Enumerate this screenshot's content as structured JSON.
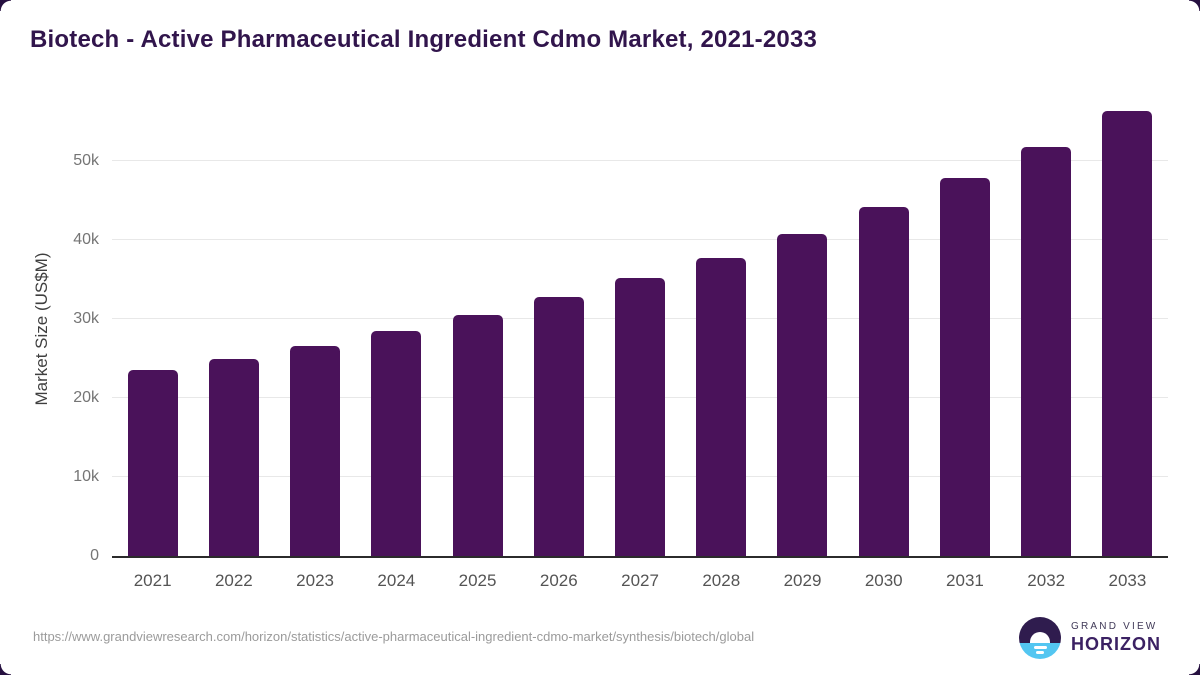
{
  "page": {
    "title": "Biotech - Active Pharmaceutical Ingredient Cdmo Market, 2021-2033",
    "source_url": "https://www.grandviewresearch.com/horizon/statistics/active-pharmaceutical-ingredient-cdmo-market/synthesis/biotech/global"
  },
  "logo": {
    "icon": "horizon-sunrise-icon",
    "brand_top": "GRAND VIEW",
    "brand_bottom": "HORIZON",
    "colors": {
      "circle_top": "#2f1c4e",
      "circle_bottom": "#53c6f1",
      "wordmark": "#3b2163"
    }
  },
  "chart_data": {
    "type": "bar",
    "title": "Biotech - Active Pharmaceutical Ingredient Cdmo Market, 2021-2033",
    "xlabel": "",
    "ylabel": "Market Size (US$M)",
    "categories": [
      "2021",
      "2022",
      "2023",
      "2024",
      "2025",
      "2026",
      "2027",
      "2028",
      "2029",
      "2030",
      "2031",
      "2032",
      "2033"
    ],
    "values": [
      23500,
      24900,
      26600,
      28500,
      30500,
      32800,
      35200,
      37800,
      40800,
      44200,
      47900,
      51800,
      56300
    ],
    "ylim": [
      0,
      57750
    ],
    "yticks": [
      {
        "value": 0,
        "label": "0"
      },
      {
        "value": 10000,
        "label": "10k"
      },
      {
        "value": 20000,
        "label": "20k"
      },
      {
        "value": 30000,
        "label": "30k"
      },
      {
        "value": 40000,
        "label": "40k"
      },
      {
        "value": 50000,
        "label": "50k"
      }
    ],
    "grid": "horizontal",
    "legend": "none",
    "bar_color": "#4a125a"
  }
}
